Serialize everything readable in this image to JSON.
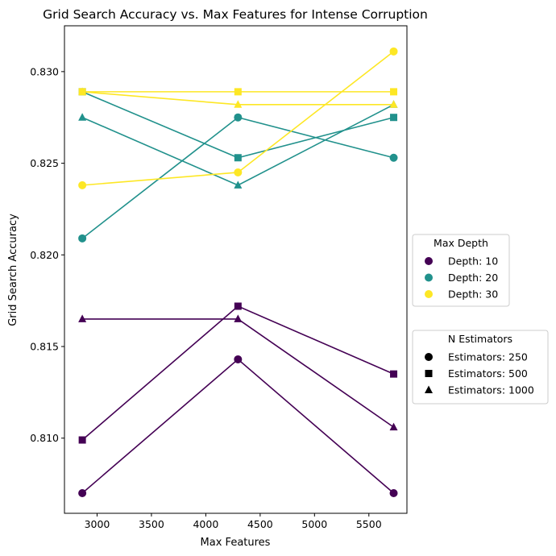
{
  "chart_data": {
    "type": "line",
    "title": "Grid Search Accuracy vs. Max Features for Intense Corruption",
    "xlabel": "Max Features",
    "ylabel": "Grid Search Accuracy",
    "xlim": [
      2700,
      5850
    ],
    "ylim": [
      0.8059,
      0.8325
    ],
    "x_ticks": [
      3000,
      3500,
      4000,
      4500,
      5000,
      5500
    ],
    "y_ticks": [
      0.81,
      0.815,
      0.82,
      0.825,
      0.83
    ],
    "y_tick_labels": [
      "0.810",
      "0.815",
      "0.820",
      "0.825",
      "0.830"
    ],
    "grid": false,
    "x": [
      2864,
      4296,
      5728
    ],
    "colors": {
      "depth_10": "#440154",
      "depth_20": "#21918c",
      "depth_30": "#fde725"
    },
    "series": [
      {
        "depth": 10,
        "estimators": 250,
        "color": "#440154",
        "marker": "circle",
        "values": [
          0.807,
          0.8143,
          0.807
        ]
      },
      {
        "depth": 10,
        "estimators": 500,
        "color": "#440154",
        "marker": "square",
        "values": [
          0.8099,
          0.8172,
          0.8135
        ]
      },
      {
        "depth": 10,
        "estimators": 1000,
        "color": "#440154",
        "marker": "triangle",
        "values": [
          0.8165,
          0.8165,
          0.8106
        ]
      },
      {
        "depth": 20,
        "estimators": 250,
        "color": "#21918c",
        "marker": "circle",
        "values": [
          0.8209,
          0.8275,
          0.8253
        ]
      },
      {
        "depth": 20,
        "estimators": 500,
        "color": "#21918c",
        "marker": "square",
        "values": [
          0.8289,
          0.8253,
          0.8275
        ]
      },
      {
        "depth": 20,
        "estimators": 1000,
        "color": "#21918c",
        "marker": "triangle",
        "values": [
          0.8275,
          0.8238,
          0.8282
        ]
      },
      {
        "depth": 30,
        "estimators": 250,
        "color": "#fde725",
        "marker": "circle",
        "values": [
          0.8238,
          0.8245,
          0.8311
        ]
      },
      {
        "depth": 30,
        "estimators": 500,
        "color": "#fde725",
        "marker": "square",
        "values": [
          0.8289,
          0.8289,
          0.8289
        ]
      },
      {
        "depth": 30,
        "estimators": 1000,
        "color": "#fde725",
        "marker": "triangle",
        "values": [
          0.8289,
          0.8282,
          0.8282
        ]
      }
    ],
    "legends": [
      {
        "title": "Max Depth",
        "placement": "right",
        "entries": [
          {
            "label": "Depth: 10",
            "marker": "circle",
            "color": "#440154"
          },
          {
            "label": "Depth: 20",
            "marker": "circle",
            "color": "#21918c"
          },
          {
            "label": "Depth: 30",
            "marker": "circle",
            "color": "#fde725"
          }
        ]
      },
      {
        "title": "N Estimators",
        "placement": "right",
        "entries": [
          {
            "label": "Estimators: 250",
            "marker": "circle",
            "color": "#000000"
          },
          {
            "label": "Estimators: 500",
            "marker": "square",
            "color": "#000000"
          },
          {
            "label": "Estimators: 1000",
            "marker": "triangle",
            "color": "#000000"
          }
        ]
      }
    ]
  }
}
